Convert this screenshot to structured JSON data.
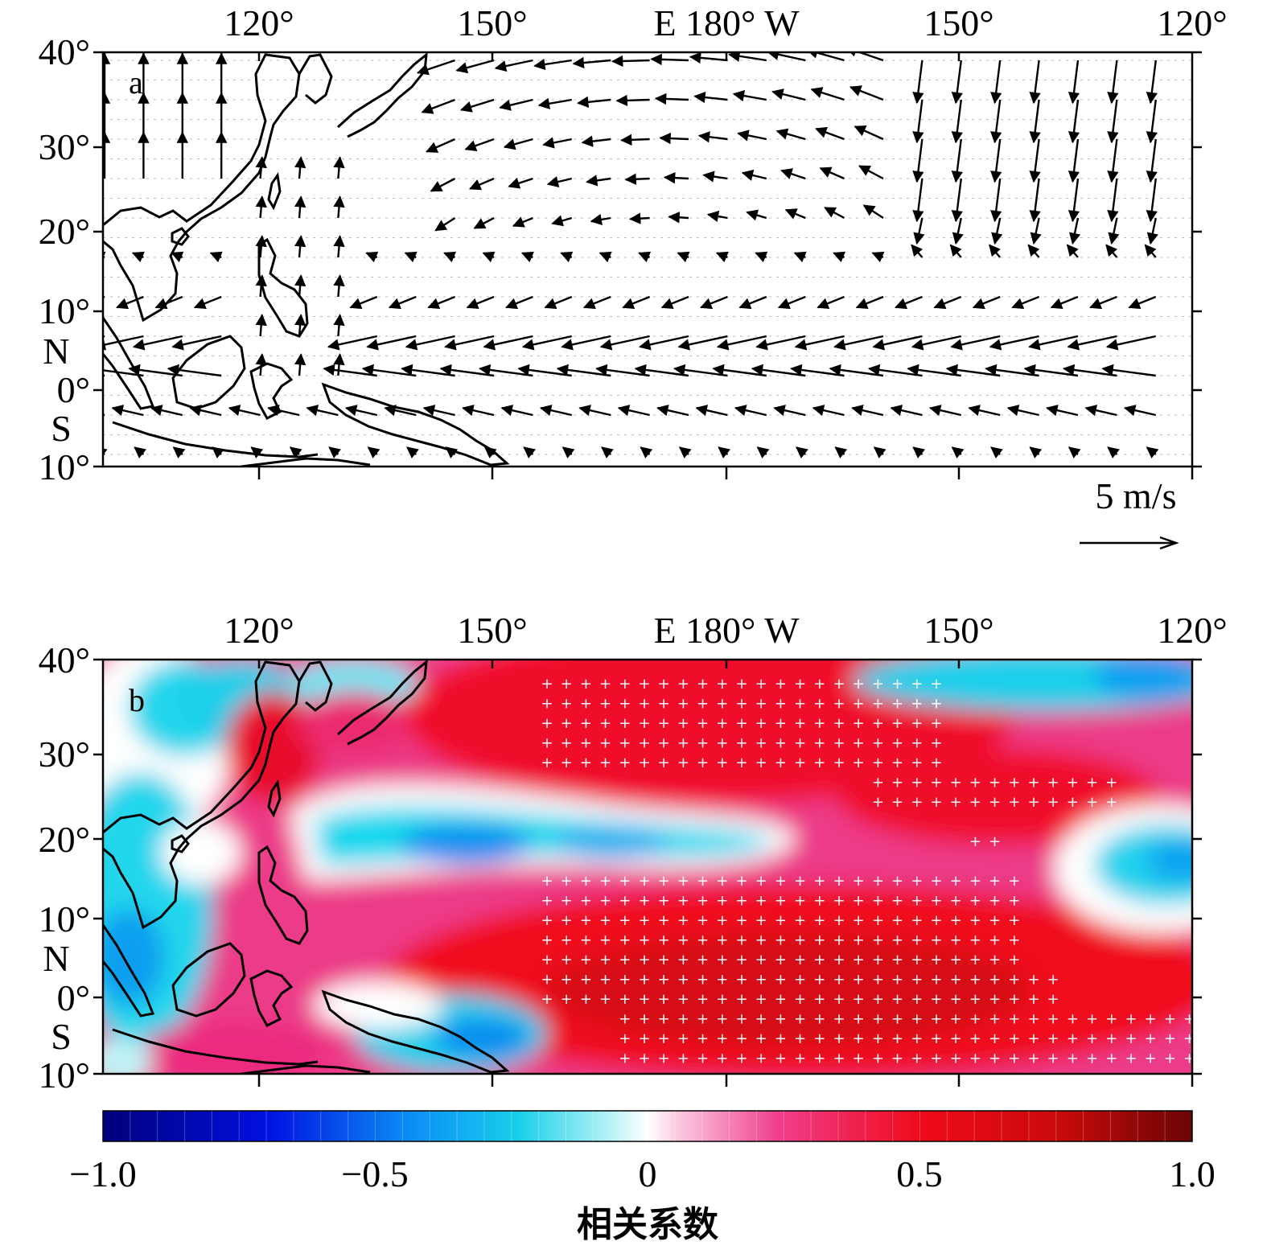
{
  "figure": {
    "panel_a": {
      "label": "a",
      "top_axis_labels": [
        "120°",
        "150°",
        "E 180° W",
        "150°",
        "120°"
      ],
      "left_axis_labels": [
        "40°",
        "30°",
        "20°",
        "10°",
        "N",
        "0°",
        "S",
        "10°"
      ],
      "reference_vector": {
        "value": 5,
        "label": "5 m/s"
      }
    },
    "panel_b": {
      "label": "b",
      "top_axis_labels": [
        "120°",
        "150°",
        "E 180° W",
        "150°",
        "120°"
      ],
      "left_axis_labels": [
        "40°",
        "30°",
        "20°",
        "10°",
        "N",
        "0°",
        "S",
        "10°"
      ],
      "significance_marker": "+"
    },
    "colorbar": {
      "title": "相关系数",
      "tick_labels": [
        "−1.0",
        "−0.5",
        "0",
        "0.5",
        "1.0"
      ],
      "range": [
        -1.0,
        1.0
      ]
    }
  },
  "colors": {
    "land_outline": "#000000",
    "vector": "#000000",
    "significance_marker": "#ffffff",
    "negative_strong": "#000080",
    "negative_mid": "#00cfef",
    "neutral": "#ffffff",
    "positive_mid": "#ef2a7d",
    "positive_strong": "#7a0000"
  }
}
